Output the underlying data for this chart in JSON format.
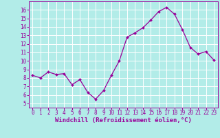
{
  "x": [
    0,
    1,
    2,
    3,
    4,
    5,
    6,
    7,
    8,
    9,
    10,
    11,
    12,
    13,
    14,
    15,
    16,
    17,
    18,
    19,
    20,
    21,
    22,
    23
  ],
  "y": [
    8.3,
    8.0,
    8.7,
    8.4,
    8.5,
    7.2,
    7.8,
    6.3,
    5.5,
    6.5,
    8.3,
    10.0,
    12.8,
    13.3,
    13.9,
    14.8,
    15.8,
    16.3,
    15.5,
    13.7,
    11.6,
    10.8,
    11.1,
    10.1
  ],
  "line_color": "#990099",
  "marker_color": "#990099",
  "bg_color": "#b2ece8",
  "grid_color": "#c0e8e4",
  "xlabel": "Windchill (Refroidissement éolien,°C)",
  "xlabel_color": "#990099",
  "ylim_min": 4.5,
  "ylim_max": 17.0,
  "xlim_min": -0.5,
  "xlim_max": 23.5,
  "yticks": [
    5,
    6,
    7,
    8,
    9,
    10,
    11,
    12,
    13,
    14,
    15,
    16
  ],
  "xticks": [
    0,
    1,
    2,
    3,
    4,
    5,
    6,
    7,
    8,
    9,
    10,
    11,
    12,
    13,
    14,
    15,
    16,
    17,
    18,
    19,
    20,
    21,
    22,
    23
  ],
  "tick_color": "#990099",
  "axis_color": "#990099",
  "tick_fontsize": 5.5,
  "xlabel_fontsize": 6.5,
  "linewidth": 0.9,
  "markersize": 2.0
}
